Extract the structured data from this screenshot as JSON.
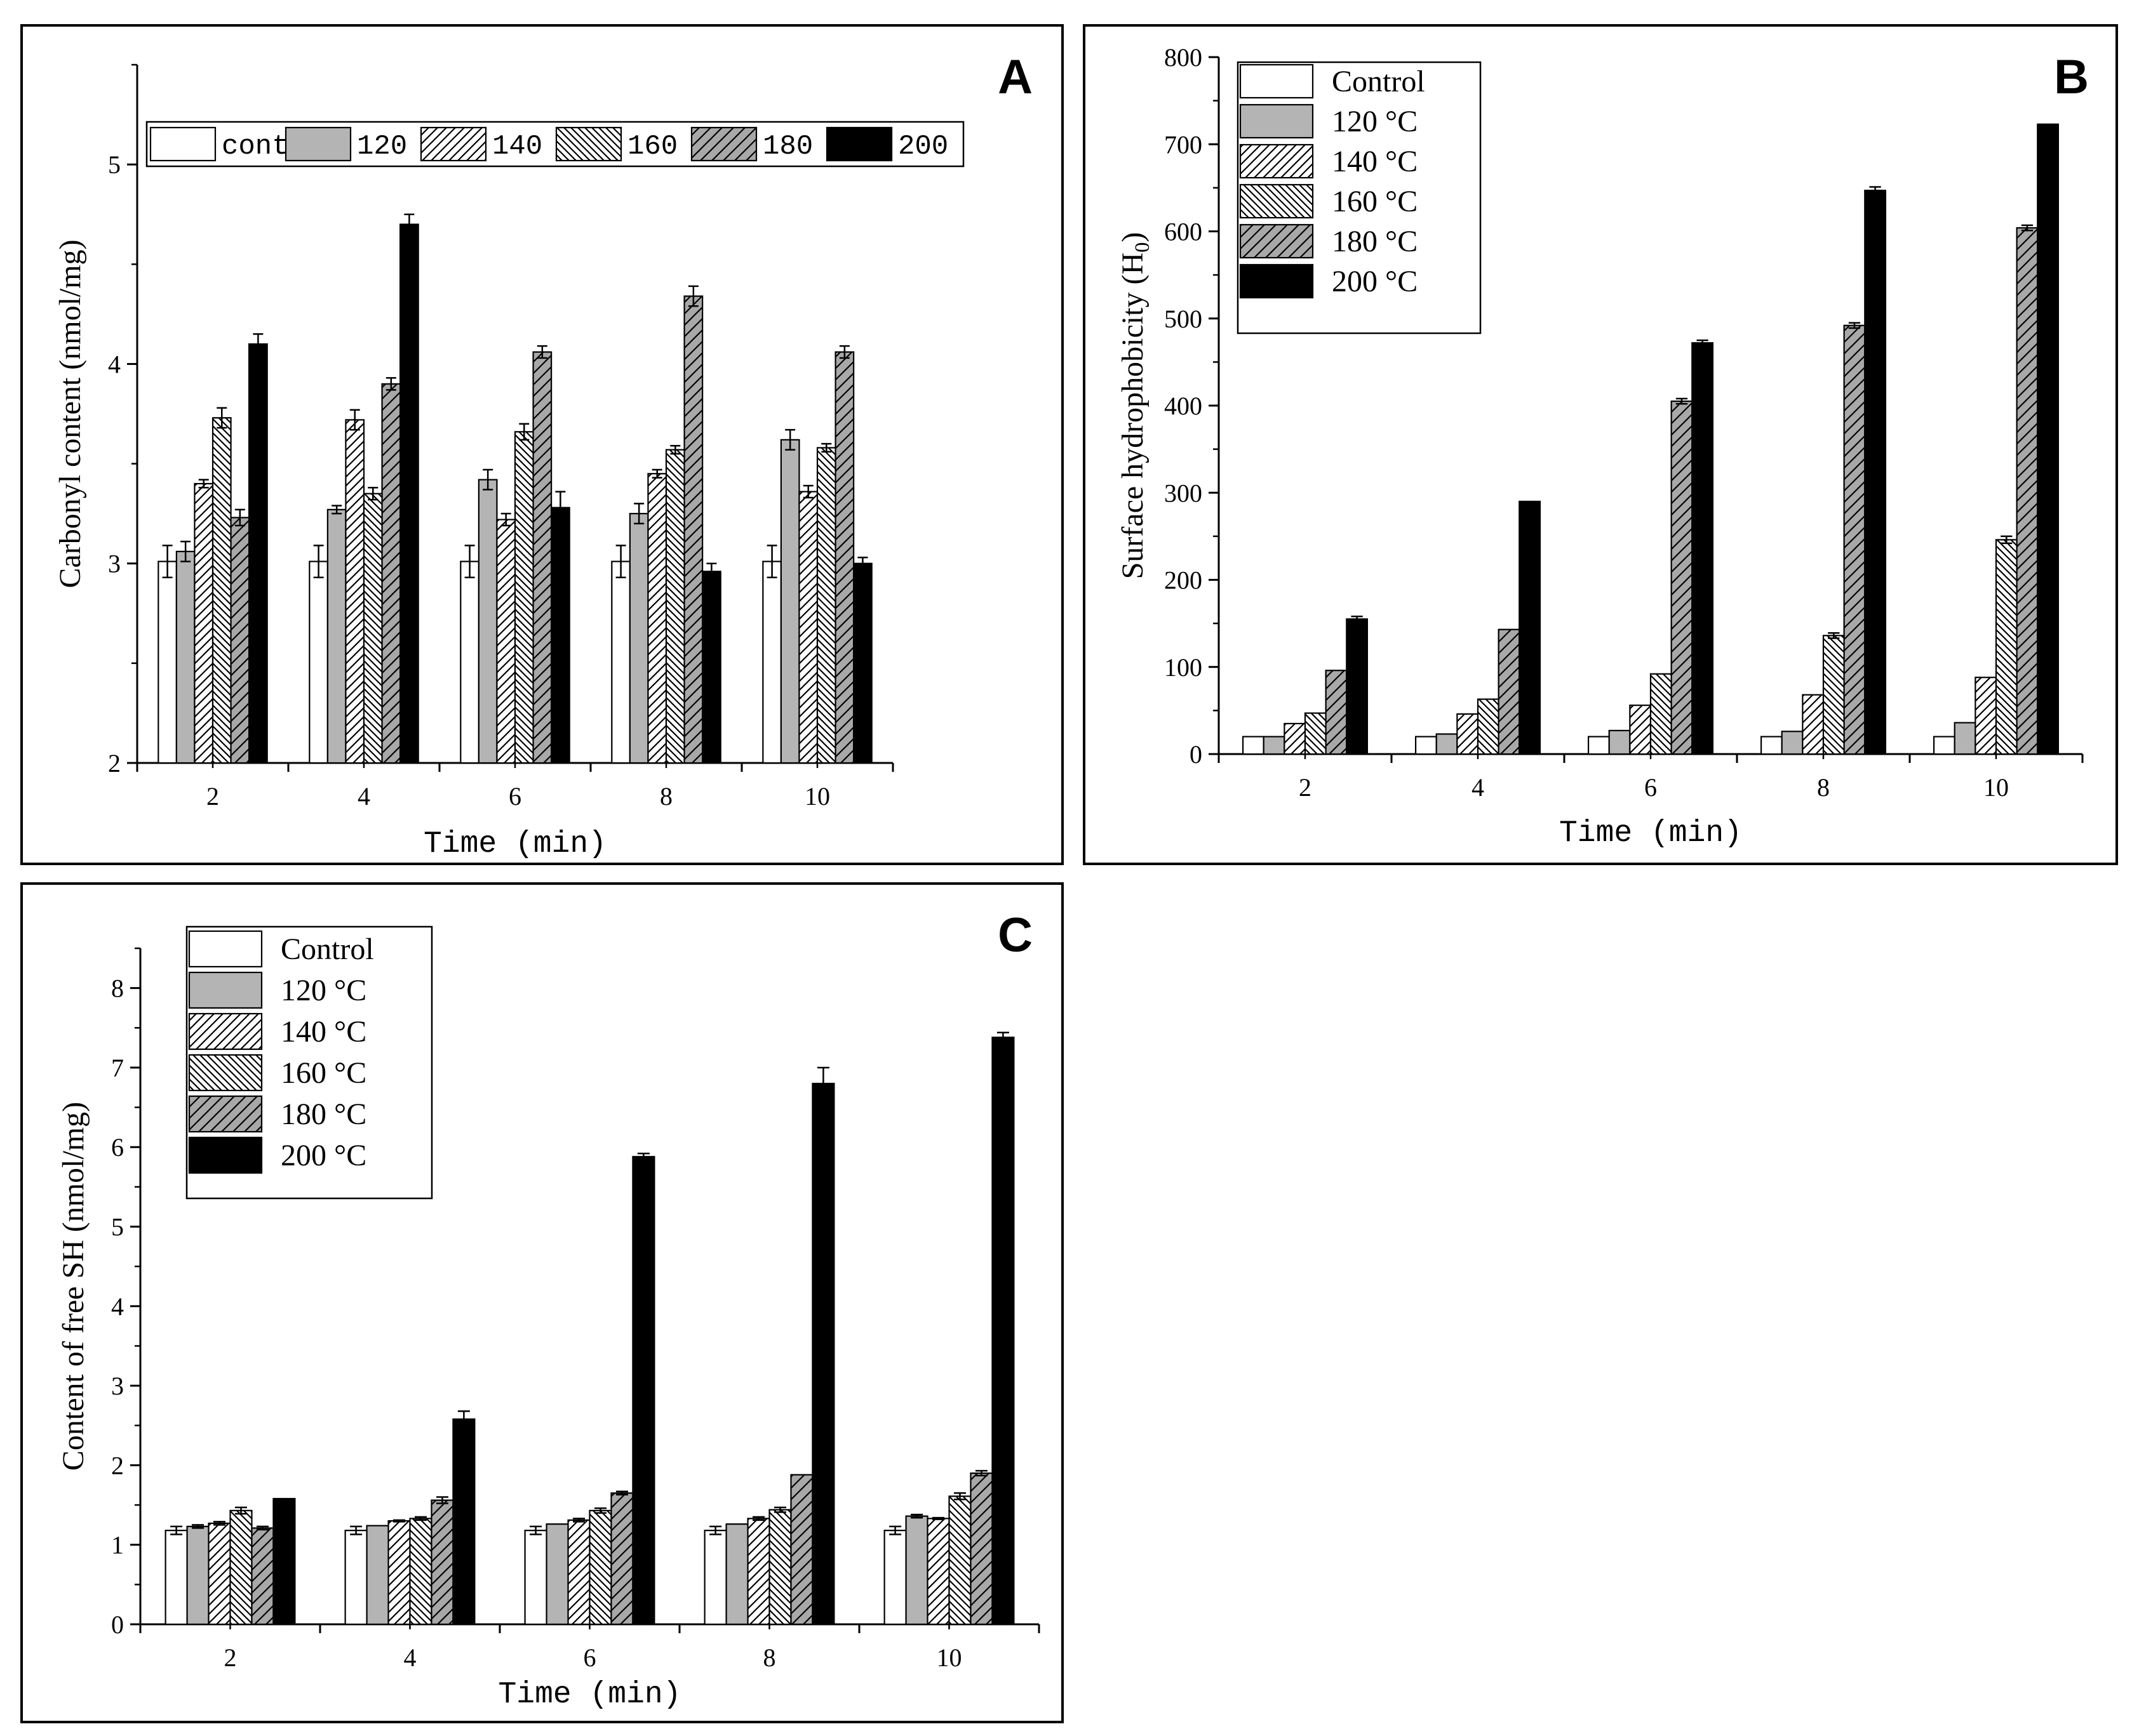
{
  "panels": [
    {
      "chart_data": {
        "type": "bar",
        "panel_label": "A",
        "title": "",
        "xlabel": "Time (min)",
        "ylabel": "Carbonyl content (nmol/mg)",
        "categories": [
          "2",
          "4",
          "6",
          "8",
          "10"
        ],
        "ylim": [
          2,
          5.5
        ],
        "yticks": [
          "2",
          "3",
          "4",
          "5"
        ],
        "ytick_values": [
          2,
          3,
          4,
          5
        ],
        "legend_layout": "row",
        "series": [
          {
            "name": "control",
            "pattern": "white",
            "values": [
              3.01,
              3.01,
              3.01,
              3.01,
              3.01
            ],
            "errors": [
              0.08,
              0.08,
              0.08,
              0.08,
              0.08
            ]
          },
          {
            "name": "120",
            "pattern": "gray",
            "values": [
              3.06,
              3.27,
              3.42,
              3.25,
              3.62
            ],
            "errors": [
              0.05,
              0.02,
              0.05,
              0.05,
              0.05
            ]
          },
          {
            "name": "140",
            "pattern": "fwd-light",
            "values": [
              3.4,
              3.72,
              3.22,
              3.45,
              3.36
            ],
            "errors": [
              0.02,
              0.05,
              0.03,
              0.02,
              0.03
            ]
          },
          {
            "name": "160",
            "pattern": "back",
            "values": [
              3.73,
              3.35,
              3.66,
              3.57,
              3.58
            ],
            "errors": [
              0.05,
              0.03,
              0.04,
              0.02,
              0.02
            ]
          },
          {
            "name": "180",
            "pattern": "fwd-gray",
            "values": [
              3.23,
              3.9,
              4.06,
              4.34,
              4.06
            ],
            "errors": [
              0.04,
              0.03,
              0.03,
              0.05,
              0.03
            ]
          },
          {
            "name": "200",
            "pattern": "black",
            "values": [
              4.1,
              4.7,
              3.28,
              2.96,
              3.0
            ],
            "errors": [
              0.05,
              0.05,
              0.08,
              0.04,
              0.03
            ]
          }
        ]
      }
    },
    {
      "chart_data": {
        "type": "bar",
        "panel_label": "B",
        "title": "",
        "xlabel": "Time (min)",
        "ylabel": "Surface hydrophobicity (H",
        "ylabel_sub": "0",
        "ylabel_close": ")",
        "categories": [
          "2",
          "4",
          "6",
          "8",
          "10"
        ],
        "ylim": [
          0,
          800
        ],
        "yticks": [
          "0",
          "100",
          "200",
          "300",
          "400",
          "500",
          "600",
          "700",
          "800"
        ],
        "ytick_values": [
          0,
          100,
          200,
          300,
          400,
          500,
          600,
          700,
          800
        ],
        "legend_layout": "column",
        "series": [
          {
            "name": "Control",
            "pattern": "white",
            "values": [
              20,
              20,
              20,
              20,
              20
            ],
            "errors": [
              0,
              0,
              0,
              0,
              0
            ]
          },
          {
            "name": "120 °C",
            "pattern": "gray",
            "values": [
              20,
              23,
              27,
              26,
              36
            ],
            "errors": [
              0,
              0,
              0,
              0,
              0
            ]
          },
          {
            "name": "140 °C",
            "pattern": "fwd-light",
            "values": [
              35,
              46,
              56,
              68,
              88
            ],
            "errors": [
              0,
              0,
              0,
              0,
              0
            ]
          },
          {
            "name": "160 °C",
            "pattern": "back",
            "values": [
              47,
              63,
              92,
              136,
              246
            ],
            "errors": [
              0,
              0,
              0,
              3,
              4
            ]
          },
          {
            "name": "180 °C",
            "pattern": "fwd-gray",
            "values": [
              96,
              143,
              405,
              492,
              604
            ],
            "errors": [
              0,
              0,
              3,
              3,
              3
            ]
          },
          {
            "name": "200 °C",
            "pattern": "black",
            "values": [
              155,
              290,
              472,
              647,
              723
            ],
            "errors": [
              3,
              0,
              3,
              4,
              0
            ]
          }
        ]
      }
    },
    {
      "chart_data": {
        "type": "bar",
        "panel_label": "C",
        "title": "",
        "xlabel": "Time (min)",
        "ylabel": "Content of free SH (nmol/mg)",
        "categories": [
          "2",
          "4",
          "6",
          "8",
          "10"
        ],
        "ylim": [
          0,
          8.5
        ],
        "yticks": [
          "0",
          "1",
          "2",
          "3",
          "4",
          "5",
          "6",
          "7",
          "8"
        ],
        "ytick_values": [
          0,
          1,
          2,
          3,
          4,
          5,
          6,
          7,
          8
        ],
        "legend_layout": "column",
        "series": [
          {
            "name": "Control",
            "pattern": "white",
            "values": [
              1.18,
              1.18,
              1.18,
              1.18,
              1.18
            ],
            "errors": [
              0.05,
              0.05,
              0.05,
              0.05,
              0.05
            ]
          },
          {
            "name": "120 °C",
            "pattern": "gray",
            "values": [
              1.23,
              1.24,
              1.26,
              1.26,
              1.36
            ],
            "errors": [
              0.02,
              0,
              0,
              0,
              0.02
            ]
          },
          {
            "name": "140 °C",
            "pattern": "fwd-light",
            "values": [
              1.27,
              1.3,
              1.31,
              1.33,
              1.33
            ],
            "errors": [
              0.02,
              0.01,
              0.02,
              0.02,
              0.01
            ]
          },
          {
            "name": "160 °C",
            "pattern": "back",
            "values": [
              1.43,
              1.33,
              1.43,
              1.44,
              1.61
            ],
            "errors": [
              0.04,
              0.02,
              0.03,
              0.03,
              0.04
            ]
          },
          {
            "name": "180 °C",
            "pattern": "fwd-gray",
            "values": [
              1.21,
              1.56,
              1.65,
              1.88,
              1.9
            ],
            "errors": [
              0.02,
              0.04,
              0.02,
              0,
              0.03
            ]
          },
          {
            "name": "200 °C",
            "pattern": "black",
            "values": [
              1.58,
              2.58,
              5.88,
              6.8,
              7.38
            ],
            "errors": [
              0,
              0.1,
              0.04,
              0.2,
              0.06
            ]
          }
        ]
      }
    }
  ]
}
